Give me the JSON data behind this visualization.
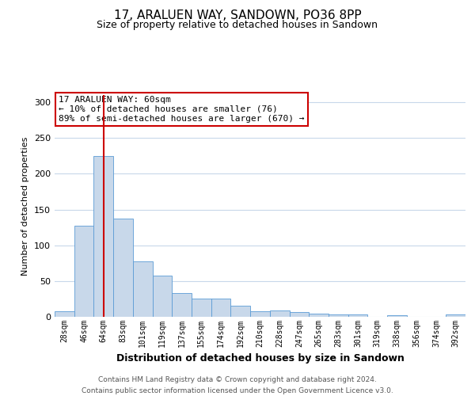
{
  "title": "17, ARALUEN WAY, SANDOWN, PO36 8PP",
  "subtitle": "Size of property relative to detached houses in Sandown",
  "xlabel": "Distribution of detached houses by size in Sandown",
  "ylabel": "Number of detached properties",
  "categories": [
    "28sqm",
    "46sqm",
    "64sqm",
    "83sqm",
    "101sqm",
    "119sqm",
    "137sqm",
    "155sqm",
    "174sqm",
    "192sqm",
    "210sqm",
    "228sqm",
    "247sqm",
    "265sqm",
    "283sqm",
    "301sqm",
    "319sqm",
    "338sqm",
    "356sqm",
    "374sqm",
    "392sqm"
  ],
  "values": [
    8,
    127,
    225,
    137,
    77,
    58,
    33,
    26,
    26,
    15,
    8,
    9,
    7,
    4,
    3,
    3,
    0,
    2,
    0,
    0,
    3
  ],
  "bar_color": "#c8d8ea",
  "bar_edge_color": "#5b9bd5",
  "red_line_index": 2,
  "red_line_color": "#cc0000",
  "annotation_text": "17 ARALUEN WAY: 60sqm\n← 10% of detached houses are smaller (76)\n89% of semi-detached houses are larger (670) →",
  "annotation_box_color": "#ffffff",
  "annotation_box_edge": "#cc0000",
  "footer": "Contains HM Land Registry data © Crown copyright and database right 2024.\nContains public sector information licensed under the Open Government Licence v3.0.",
  "ylim": [
    0,
    310
  ],
  "bar_width": 1.0,
  "background_color": "#ffffff",
  "grid_color": "#c8d8ea",
  "title_fontsize": 11,
  "subtitle_fontsize": 9,
  "ylabel_fontsize": 8,
  "xlabel_fontsize": 9,
  "tick_fontsize": 7,
  "footer_fontsize": 6.5,
  "annotation_fontsize": 8
}
